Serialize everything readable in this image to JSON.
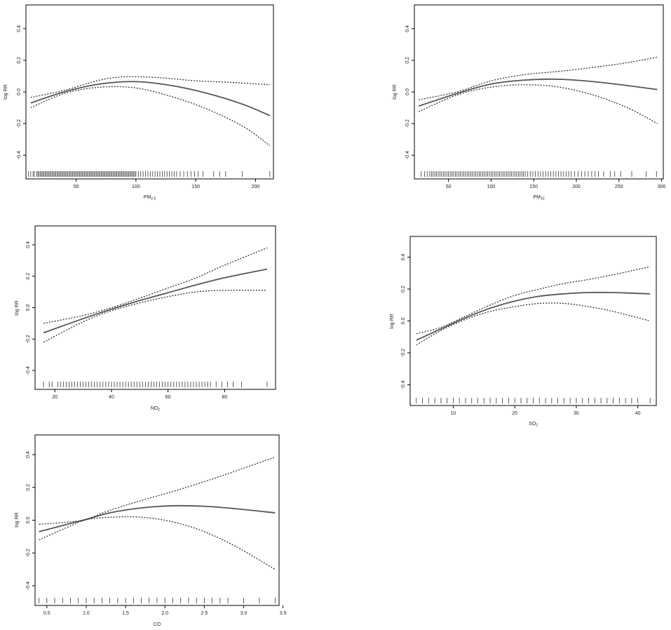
{
  "chart_data": [
    {
      "type": "line",
      "xlabel": "PM",
      "xlabel_sub": "2.5",
      "ylabel": "log RR",
      "xlim": [
        8,
        215
      ],
      "ylim": [
        -0.55,
        0.55
      ],
      "xticks": [
        50,
        100,
        150,
        200
      ],
      "yticks": [
        -0.4,
        -0.2,
        0.0,
        0.2,
        0.4
      ],
      "series": [
        {
          "role": "fit",
          "x": [
            12,
            40,
            70,
            100,
            130,
            160,
            190,
            212
          ],
          "y": [
            -0.07,
            0.0,
            0.05,
            0.065,
            0.04,
            -0.01,
            -0.08,
            -0.15
          ]
        },
        {
          "role": "upper",
          "x": [
            12,
            40,
            70,
            90,
            120,
            150,
            180,
            212
          ],
          "y": [
            -0.035,
            0.01,
            0.075,
            0.095,
            0.09,
            0.07,
            0.06,
            0.045
          ]
        },
        {
          "role": "lower",
          "x": [
            12,
            40,
            70,
            100,
            130,
            160,
            190,
            212
          ],
          "y": [
            -0.1,
            -0.01,
            0.03,
            0.025,
            -0.03,
            -0.11,
            -0.22,
            -0.34
          ]
        }
      ],
      "rug": [
        10,
        12,
        14,
        15,
        17,
        18,
        19,
        20,
        21,
        22,
        23,
        24,
        25,
        26,
        27,
        28,
        29,
        30,
        31,
        32,
        33,
        34,
        35,
        36,
        37,
        38,
        39,
        40,
        41,
        42,
        43,
        44,
        45,
        46,
        47,
        48,
        49,
        50,
        51,
        52,
        53,
        54,
        55,
        56,
        57,
        58,
        59,
        60,
        61,
        62,
        63,
        64,
        65,
        66,
        67,
        68,
        69,
        70,
        71,
        72,
        73,
        74,
        75,
        76,
        77,
        78,
        79,
        80,
        81,
        82,
        83,
        84,
        85,
        86,
        87,
        88,
        89,
        90,
        91,
        92,
        93,
        94,
        95,
        96,
        97,
        98,
        99,
        100,
        102,
        104,
        106,
        108,
        110,
        112,
        114,
        116,
        118,
        120,
        122,
        124,
        126,
        128,
        130,
        132,
        134,
        137,
        140,
        143,
        146,
        149,
        152,
        156,
        165,
        170,
        175,
        189,
        212
      ]
    },
    {
      "type": "line",
      "xlabel": "PM",
      "xlabel_sub": "10",
      "ylabel": "log RR",
      "xlim": [
        10,
        302
      ],
      "ylim": [
        -0.55,
        0.55
      ],
      "xticks": [
        50,
        100,
        150,
        200,
        250,
        300
      ],
      "yticks": [
        -0.4,
        -0.2,
        0.0,
        0.2,
        0.4
      ],
      "series": [
        {
          "role": "fit",
          "x": [
            15,
            60,
            100,
            140,
            180,
            220,
            260,
            295
          ],
          "y": [
            -0.09,
            -0.01,
            0.05,
            0.075,
            0.08,
            0.065,
            0.04,
            0.015
          ]
        },
        {
          "role": "upper",
          "x": [
            15,
            60,
            100,
            140,
            180,
            220,
            260,
            295
          ],
          "y": [
            -0.05,
            0.0,
            0.07,
            0.11,
            0.13,
            0.155,
            0.185,
            0.22
          ]
        },
        {
          "role": "lower",
          "x": [
            15,
            60,
            100,
            140,
            180,
            220,
            260,
            295
          ],
          "y": [
            -0.125,
            -0.02,
            0.03,
            0.045,
            0.03,
            -0.02,
            -0.1,
            -0.2
          ]
        }
      ],
      "rug": [
        18,
        22,
        25,
        28,
        30,
        32,
        34,
        36,
        38,
        40,
        42,
        44,
        46,
        48,
        50,
        52,
        54,
        56,
        58,
        60,
        62,
        64,
        66,
        68,
        70,
        72,
        74,
        76,
        78,
        80,
        82,
        84,
        86,
        88,
        90,
        92,
        94,
        96,
        98,
        100,
        102,
        104,
        106,
        108,
        110,
        112,
        114,
        116,
        118,
        120,
        122,
        124,
        126,
        128,
        130,
        132,
        134,
        136,
        138,
        140,
        143,
        146,
        149,
        152,
        155,
        158,
        161,
        164,
        167,
        170,
        173,
        176,
        179,
        182,
        185,
        188,
        191,
        194,
        198,
        202,
        206,
        210,
        214,
        218,
        222,
        226,
        232,
        240,
        245,
        252,
        265,
        282,
        294
      ]
    },
    {
      "type": "line",
      "xlabel": "NO",
      "xlabel_sub": "2",
      "ylabel": "log RR",
      "xlim": [
        13,
        98
      ],
      "ylim": [
        -0.52,
        0.52
      ],
      "xticks": [
        20,
        40,
        60,
        80
      ],
      "yticks": [
        -0.4,
        -0.2,
        0.0,
        0.2,
        0.4
      ],
      "series": [
        {
          "role": "fit",
          "x": [
            16,
            30,
            40,
            50,
            60,
            70,
            80,
            95
          ],
          "y": [
            -0.16,
            -0.07,
            -0.01,
            0.045,
            0.095,
            0.145,
            0.19,
            0.245
          ]
        },
        {
          "role": "upper",
          "x": [
            16,
            30,
            40,
            50,
            60,
            70,
            80,
            95
          ],
          "y": [
            -0.1,
            -0.05,
            0.0,
            0.06,
            0.125,
            0.19,
            0.27,
            0.38
          ]
        },
        {
          "role": "lower",
          "x": [
            16,
            30,
            40,
            50,
            60,
            70,
            80,
            95
          ],
          "y": [
            -0.22,
            -0.09,
            -0.02,
            0.03,
            0.07,
            0.1,
            0.11,
            0.11
          ]
        }
      ],
      "rug": [
        16,
        18,
        19,
        21,
        22,
        23,
        24,
        25,
        26,
        27,
        28,
        29,
        30,
        31,
        32,
        33,
        34,
        35,
        36,
        37,
        38,
        39,
        40,
        41,
        42,
        43,
        44,
        45,
        46,
        47,
        48,
        49,
        50,
        51,
        52,
        53,
        54,
        55,
        56,
        57,
        58,
        59,
        60,
        61,
        62,
        63,
        64,
        65,
        66,
        67,
        68,
        69,
        70,
        71,
        72,
        73,
        74,
        75,
        77,
        79,
        81,
        83,
        86,
        95
      ]
    },
    {
      "type": "line",
      "xlabel": "SO",
      "xlabel_sub": "2",
      "ylabel": "log RR",
      "xlim": [
        3,
        43
      ],
      "ylim": [
        -0.53,
        0.53
      ],
      "xticks": [
        10,
        20,
        30,
        40
      ],
      "yticks": [
        -0.4,
        -0.2,
        0.0,
        0.2,
        0.4
      ],
      "series": [
        {
          "role": "fit",
          "x": [
            4,
            8,
            12,
            16,
            20,
            24,
            28,
            32,
            36,
            42
          ],
          "y": [
            -0.12,
            -0.05,
            0.02,
            0.08,
            0.125,
            0.155,
            0.17,
            0.178,
            0.178,
            0.17
          ]
        },
        {
          "role": "upper",
          "x": [
            4,
            8,
            12,
            16,
            20,
            24,
            28,
            32,
            36,
            42
          ],
          "y": [
            -0.08,
            -0.04,
            0.03,
            0.1,
            0.16,
            0.2,
            0.235,
            0.26,
            0.29,
            0.34
          ]
        },
        {
          "role": "lower",
          "x": [
            4,
            8,
            12,
            16,
            20,
            24,
            28,
            32,
            36,
            42
          ],
          "y": [
            -0.15,
            -0.06,
            0.01,
            0.06,
            0.09,
            0.11,
            0.11,
            0.09,
            0.06,
            0.0
          ]
        }
      ],
      "rug": [
        4,
        5,
        6,
        7,
        8,
        9,
        10,
        11,
        12,
        13,
        14,
        15,
        16,
        17,
        18,
        19,
        20,
        21,
        22,
        23,
        24,
        25,
        26,
        27,
        28,
        29,
        30,
        31,
        32,
        33,
        34,
        35,
        36,
        37,
        38,
        39,
        40,
        42
      ]
    },
    {
      "type": "line",
      "xlabel": "CO",
      "xlabel_sub": "",
      "ylabel": "log RR",
      "xlim": [
        0.35,
        3.45
      ],
      "ylim": [
        -0.52,
        0.52
      ],
      "xticks": [
        0.5,
        1.0,
        1.5,
        2.0,
        2.5,
        3.0,
        3.5
      ],
      "yticks": [
        -0.4,
        -0.2,
        0.0,
        0.2,
        0.4
      ],
      "series": [
        {
          "role": "fit",
          "x": [
            0.4,
            0.8,
            1.0,
            1.3,
            1.7,
            2.1,
            2.5,
            2.9,
            3.4
          ],
          "y": [
            -0.07,
            -0.02,
            0.005,
            0.045,
            0.075,
            0.088,
            0.085,
            0.07,
            0.045
          ]
        },
        {
          "role": "upper",
          "x": [
            0.4,
            0.8,
            1.0,
            1.3,
            1.7,
            2.1,
            2.5,
            2.9,
            3.4
          ],
          "y": [
            -0.025,
            -0.01,
            0.005,
            0.06,
            0.12,
            0.175,
            0.235,
            0.3,
            0.385
          ]
        },
        {
          "role": "lower",
          "x": [
            0.4,
            0.8,
            1.0,
            1.3,
            1.7,
            2.1,
            2.5,
            2.9,
            3.4
          ],
          "y": [
            -0.12,
            -0.035,
            0.003,
            0.018,
            0.018,
            -0.01,
            -0.07,
            -0.16,
            -0.3
          ]
        }
      ],
      "rug": [
        0.4,
        0.5,
        0.6,
        0.7,
        0.8,
        0.9,
        1.0,
        1.1,
        1.2,
        1.3,
        1.4,
        1.5,
        1.6,
        1.7,
        1.8,
        1.9,
        2.0,
        2.1,
        2.2,
        2.3,
        2.4,
        2.5,
        2.6,
        2.7,
        2.8,
        3.0,
        3.2,
        3.4
      ]
    }
  ]
}
